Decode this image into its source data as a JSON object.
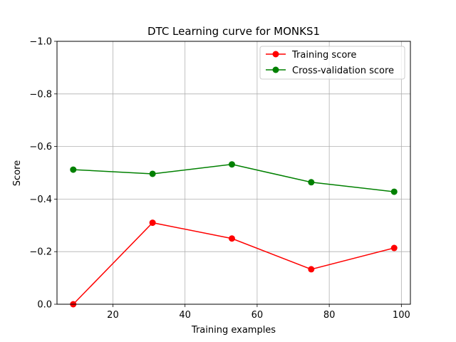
{
  "chart_data": {
    "type": "line",
    "title": "DTC Learning curve for MONKS1",
    "xlabel": "Training examples",
    "ylabel": "Score",
    "xlim": [
      4.5,
      102.5
    ],
    "ylim": [
      0,
      -1.0
    ],
    "xticks": [
      20,
      40,
      60,
      80,
      100
    ],
    "xtick_labels": [
      "20",
      "40",
      "60",
      "80",
      "100"
    ],
    "yticks": [
      0,
      -0.2,
      -0.4,
      -0.6,
      -0.8,
      -1.0
    ],
    "ytick_labels": [
      "0.0",
      "−0.2",
      "−0.4",
      "−0.6",
      "−0.8",
      "−1.0"
    ],
    "grid": true,
    "legend_position": "top-right",
    "series": [
      {
        "name": "Training score",
        "color": "#ff0000",
        "x": [
          9,
          31,
          53,
          75,
          98
        ],
        "y": [
          0.0,
          -0.31,
          -0.25,
          -0.133,
          -0.214
        ]
      },
      {
        "name": "Cross-validation score",
        "color": "#008000",
        "x": [
          9,
          31,
          53,
          75,
          98
        ],
        "y": [
          -0.512,
          -0.496,
          -0.532,
          -0.464,
          -0.428
        ]
      }
    ]
  }
}
